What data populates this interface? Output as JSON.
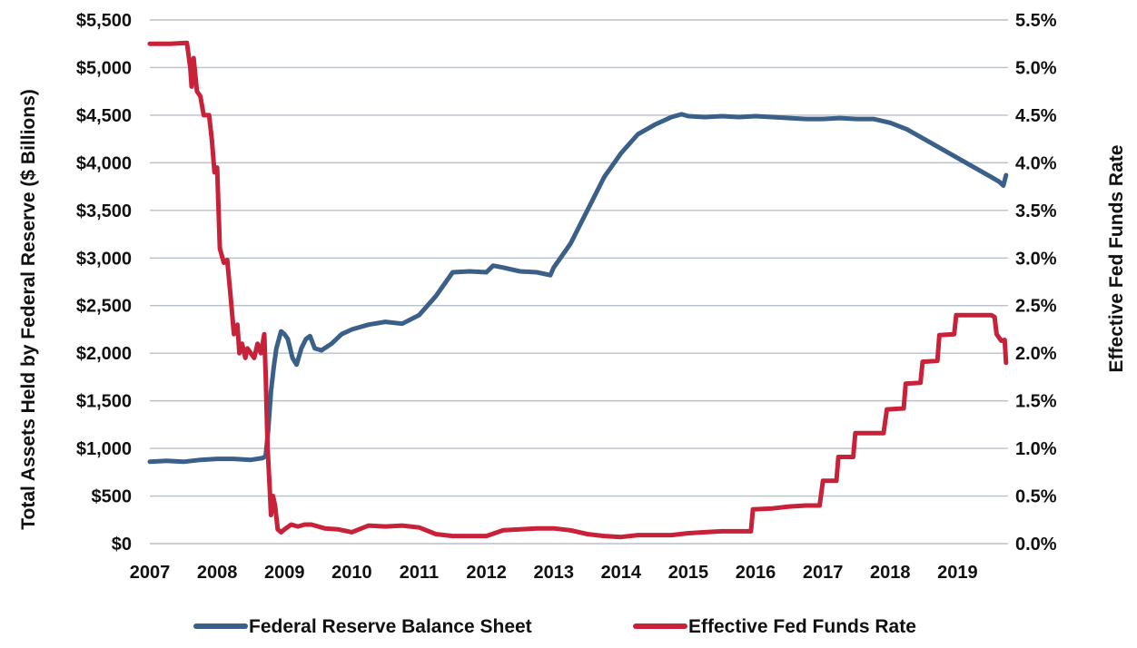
{
  "chart_data": {
    "type": "line",
    "title": "",
    "xlabel": "",
    "ylabel": "Total Assets Held by Federal Reserve ($ Billions)",
    "y2label": "Effective Fed Funds Rate",
    "xlim": [
      2007.0,
      2019.75
    ],
    "ylim": [
      0,
      5500
    ],
    "y2lim": [
      0,
      5.5
    ],
    "grid": "horizontal",
    "legend_position": "bottom",
    "x_ticks": [
      "2007",
      "2008",
      "2009",
      "2010",
      "2011",
      "2012",
      "2013",
      "2014",
      "2015",
      "2016",
      "2017",
      "2018",
      "2019"
    ],
    "y_ticks": [
      "$0",
      "$500",
      "$1,000",
      "$1,500",
      "$2,000",
      "$2,500",
      "$3,000",
      "$3,500",
      "$4,000",
      "$4,500",
      "$5,000",
      "$5,500"
    ],
    "y2_ticks": [
      "0.0%",
      "0.5%",
      "1.0%",
      "1.5%",
      "2.0%",
      "2.5%",
      "3.0%",
      "3.5%",
      "4.0%",
      "4.5%",
      "5.0%",
      "5.5%"
    ],
    "series": [
      {
        "name": "Federal Reserve Balance Sheet",
        "axis": "left",
        "color": "#3a5f88",
        "x": [
          2007.0,
          2007.25,
          2007.5,
          2007.75,
          2008.0,
          2008.25,
          2008.5,
          2008.68,
          2008.72,
          2008.76,
          2008.8,
          2008.84,
          2008.88,
          2008.95,
          2009.0,
          2009.05,
          2009.12,
          2009.18,
          2009.25,
          2009.32,
          2009.38,
          2009.45,
          2009.55,
          2009.7,
          2009.85,
          2010.0,
          2010.25,
          2010.5,
          2010.75,
          2011.0,
          2011.25,
          2011.5,
          2011.75,
          2012.0,
          2012.1,
          2012.25,
          2012.5,
          2012.75,
          2012.95,
          2013.0,
          2013.25,
          2013.5,
          2013.75,
          2014.0,
          2014.25,
          2014.5,
          2014.75,
          2014.9,
          2015.0,
          2015.25,
          2015.5,
          2015.75,
          2016.0,
          2016.25,
          2016.5,
          2016.75,
          2017.0,
          2017.25,
          2017.5,
          2017.75,
          2018.0,
          2018.25,
          2018.5,
          2018.75,
          2019.0,
          2019.25,
          2019.5,
          2019.62,
          2019.68,
          2019.72
        ],
        "values": [
          860,
          870,
          860,
          880,
          890,
          890,
          880,
          900,
          920,
          1200,
          1600,
          1850,
          2050,
          2230,
          2200,
          2150,
          1950,
          1880,
          2050,
          2150,
          2180,
          2050,
          2030,
          2100,
          2200,
          2250,
          2300,
          2330,
          2310,
          2400,
          2600,
          2850,
          2860,
          2850,
          2920,
          2900,
          2860,
          2850,
          2820,
          2900,
          3150,
          3500,
          3850,
          4100,
          4300,
          4400,
          4480,
          4510,
          4490,
          4480,
          4490,
          4480,
          4490,
          4480,
          4470,
          4460,
          4460,
          4470,
          4460,
          4460,
          4420,
          4350,
          4250,
          4150,
          4050,
          3950,
          3850,
          3800,
          3760,
          3870
        ]
      },
      {
        "name": "Effective Fed Funds Rate",
        "axis": "right",
        "color": "#c8213a",
        "x": [
          2007.0,
          2007.3,
          2007.55,
          2007.6,
          2007.62,
          2007.65,
          2007.7,
          2007.75,
          2007.8,
          2007.88,
          2007.92,
          2007.96,
          2008.0,
          2008.04,
          2008.08,
          2008.1,
          2008.15,
          2008.2,
          2008.25,
          2008.3,
          2008.33,
          2008.37,
          2008.42,
          2008.45,
          2008.5,
          2008.55,
          2008.6,
          2008.65,
          2008.7,
          2008.72,
          2008.75,
          2008.78,
          2008.8,
          2008.83,
          2008.86,
          2008.9,
          2008.95,
          2009.0,
          2009.1,
          2009.2,
          2009.3,
          2009.4,
          2009.6,
          2009.8,
          2010.0,
          2010.25,
          2010.5,
          2010.75,
          2011.0,
          2011.25,
          2011.5,
          2011.75,
          2012.0,
          2012.25,
          2012.5,
          2012.75,
          2013.0,
          2013.25,
          2013.5,
          2013.75,
          2014.0,
          2014.25,
          2014.5,
          2014.75,
          2015.0,
          2015.25,
          2015.5,
          2015.75,
          2015.93,
          2015.96,
          2016.25,
          2016.5,
          2016.75,
          2016.95,
          2017.0,
          2017.2,
          2017.23,
          2017.45,
          2017.48,
          2017.9,
          2017.95,
          2018.2,
          2018.23,
          2018.45,
          2018.48,
          2018.7,
          2018.73,
          2018.95,
          2018.98,
          2019.5,
          2019.55,
          2019.58,
          2019.65,
          2019.7,
          2019.72
        ],
        "values": [
          5.25,
          5.25,
          5.26,
          5.0,
          4.8,
          5.1,
          4.75,
          4.7,
          4.5,
          4.5,
          4.25,
          3.9,
          3.95,
          3.1,
          3.0,
          2.95,
          2.98,
          2.6,
          2.2,
          2.3,
          2.0,
          2.1,
          1.95,
          2.05,
          2.0,
          1.95,
          2.1,
          2.0,
          2.2,
          1.8,
          1.0,
          0.6,
          0.3,
          0.5,
          0.4,
          0.15,
          0.12,
          0.15,
          0.2,
          0.18,
          0.2,
          0.2,
          0.16,
          0.15,
          0.12,
          0.19,
          0.18,
          0.19,
          0.17,
          0.1,
          0.08,
          0.08,
          0.08,
          0.14,
          0.15,
          0.16,
          0.16,
          0.14,
          0.1,
          0.08,
          0.07,
          0.09,
          0.09,
          0.09,
          0.11,
          0.12,
          0.13,
          0.13,
          0.13,
          0.36,
          0.37,
          0.39,
          0.4,
          0.4,
          0.66,
          0.66,
          0.91,
          0.91,
          1.16,
          1.16,
          1.41,
          1.42,
          1.68,
          1.69,
          1.91,
          1.92,
          2.19,
          2.2,
          2.4,
          2.4,
          2.38,
          2.2,
          2.13,
          2.14,
          1.9
        ]
      }
    ]
  }
}
